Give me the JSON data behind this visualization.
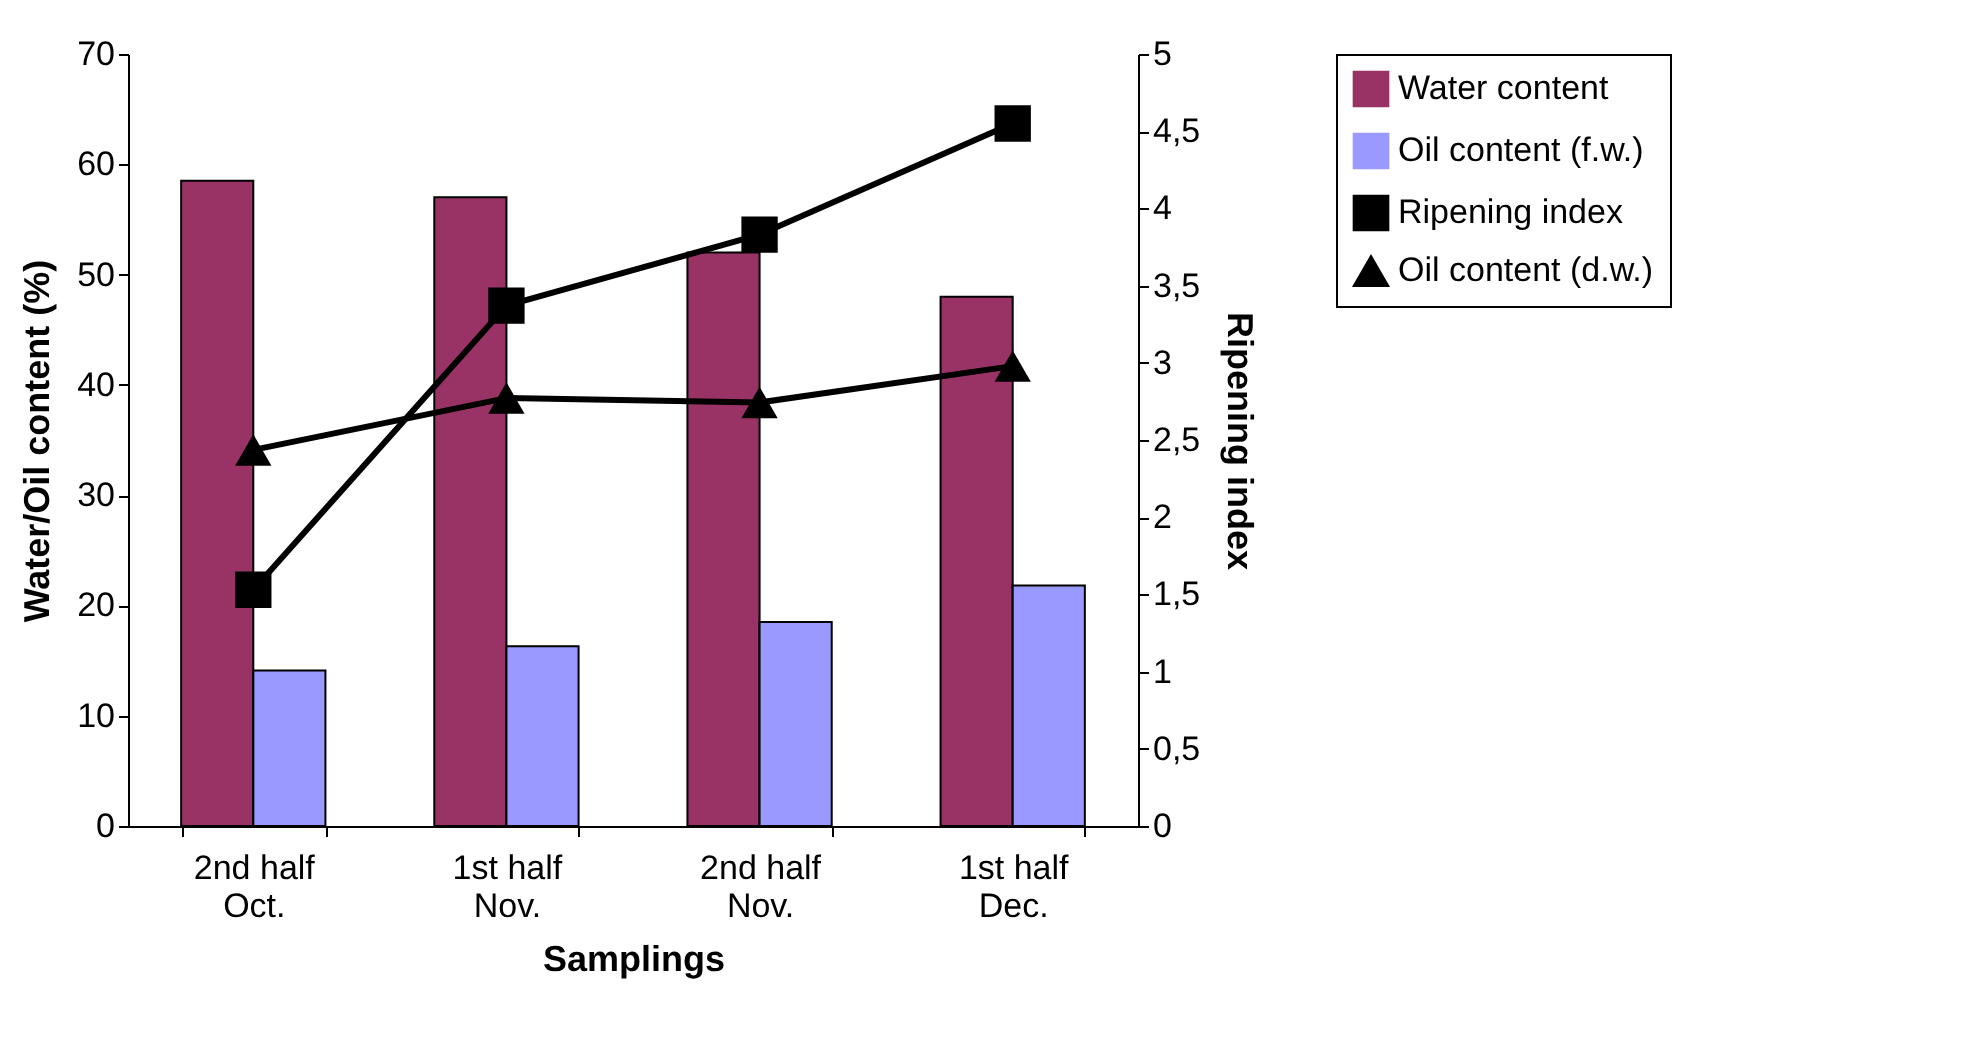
{
  "chart_data": {
    "type": "bar",
    "xlabel": "Samplings",
    "ylabel": "Water/Oil content (%)",
    "y2label": "Ripening index",
    "categories": [
      "2nd half Oct.",
      "1st half Nov.",
      "2nd half Nov.",
      "1st half Dec."
    ],
    "series": [
      {
        "name": "Water content",
        "color": "#993366",
        "values": [
          58.5,
          57,
          52,
          48
        ]
      },
      {
        "name": "Oil content (f.w.)",
        "color": "#9999ff",
        "values": [
          14.1,
          16.3,
          18.5,
          21.8
        ]
      },
      {
        "name": "Ripening index",
        "type": "line",
        "axis": "y2",
        "marker": "square",
        "color": "#000000",
        "values": [
          1.53,
          3.37,
          3.83,
          4.55
        ]
      },
      {
        "name": "Oil content (d.w.)",
        "type": "line",
        "marker": "triangle",
        "color": "#000000",
        "values": [
          34.1,
          38.8,
          38.4,
          41.7
        ]
      }
    ],
    "ylim": [
      0,
      70
    ],
    "yticks": [
      0,
      10,
      20,
      30,
      40,
      50,
      60,
      70
    ],
    "y2lim": [
      0,
      5
    ],
    "y2ticks": [
      0,
      {
        "value": 0.5,
        "label": "0,5"
      },
      1,
      {
        "value": 1.5,
        "label": "1,5"
      },
      2,
      {
        "value": 2.5,
        "label": "2,5"
      },
      3,
      {
        "value": 3.5,
        "label": "3,5"
      },
      4,
      {
        "value": 4.5,
        "label": "4,5"
      },
      5
    ],
    "legend": "right",
    "grid": false,
    "line_style": "solid"
  }
}
